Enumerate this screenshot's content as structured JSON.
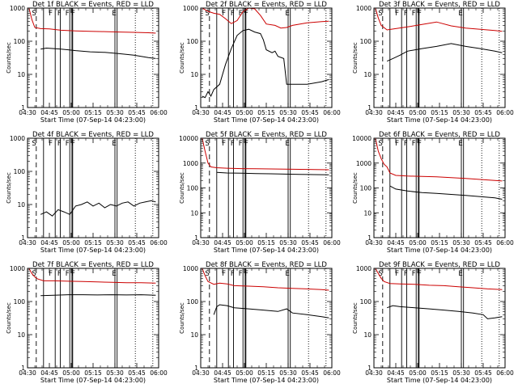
{
  "figure": {
    "background": "#ffffff",
    "event_color": "#000000",
    "lld_color": "#cc0000"
  },
  "shared": {
    "ylabel": "Counts/sec",
    "xlabel": "Start Time (07-Sep-14 04:23:00)",
    "x_tick_labels": [
      "04:30",
      "04:45",
      "05:00",
      "05:15",
      "05:30",
      "05:45",
      "06:00"
    ],
    "x_range_min": [
      7,
      97
    ],
    "x_tick_min": [
      7,
      22,
      37,
      52,
      67,
      82,
      97
    ],
    "marker_letters": [
      "S",
      "F",
      "F",
      "F",
      "F",
      "E"
    ],
    "marker_min": [
      10,
      21.5,
      27.5,
      33,
      37,
      65
    ],
    "vline_min": [
      18,
      26,
      29.5,
      36,
      37.5,
      38,
      67,
      68.5
    ],
    "dotted_min": [
      81,
      93
    ],
    "dashed_min": 13
  },
  "chart_data": [
    {
      "type": "line",
      "title": "Det 1f BLACK = Events, RED = LLD",
      "y_tick_labels": [
        "1",
        "10",
        "100",
        "1000"
      ],
      "ylim": [
        1,
        1000
      ],
      "series": [
        {
          "name": "LLD",
          "color": "#cc0000",
          "x": [
            8,
            10,
            12,
            16,
            22,
            30,
            40,
            50,
            60,
            70,
            80,
            90,
            95
          ],
          "y": [
            1000,
            450,
            260,
            240,
            235,
            215,
            205,
            200,
            195,
            190,
            185,
            180,
            175
          ]
        },
        {
          "name": "Events",
          "color": "#000000",
          "x": [
            16,
            20,
            25,
            30,
            35,
            40,
            50,
            60,
            70,
            80,
            90,
            95
          ],
          "y": [
            58,
            62,
            60,
            58,
            55,
            52,
            48,
            46,
            42,
            38,
            32,
            30
          ]
        }
      ]
    },
    {
      "type": "line",
      "title": "Det 2f BLACK = Events, RED = LLD",
      "y_tick_labels": [
        "1",
        "10",
        "100",
        "1000"
      ],
      "ylim": [
        1,
        1000
      ],
      "series": [
        {
          "name": "LLD",
          "color": "#cc0000",
          "x": [
            8,
            12,
            16,
            20,
            24,
            28,
            32,
            36,
            40,
            44,
            48,
            52,
            58,
            62,
            66,
            70,
            80,
            90,
            95
          ],
          "y": [
            1000,
            800,
            700,
            650,
            480,
            340,
            420,
            780,
            1000,
            950,
            600,
            330,
            300,
            250,
            260,
            300,
            360,
            390,
            400
          ]
        },
        {
          "name": "Events",
          "color": "#000000",
          "x": [
            8,
            10,
            12,
            14,
            16,
            20,
            24,
            28,
            32,
            36,
            40,
            44,
            48,
            50,
            52,
            56,
            58,
            60,
            64,
            66,
            70,
            80,
            90,
            95
          ],
          "y": [
            2.2,
            2.0,
            3.0,
            2.2,
            3.5,
            5,
            20,
            60,
            150,
            210,
            230,
            190,
            170,
            110,
            55,
            45,
            50,
            35,
            30,
            5,
            5,
            5,
            6,
            7
          ]
        }
      ]
    },
    {
      "type": "line",
      "title": "Det 3f BLACK = Events, RED = LLD",
      "y_tick_labels": [
        "1",
        "10",
        "100",
        "1000"
      ],
      "ylim": [
        1,
        1000
      ],
      "series": [
        {
          "name": "LLD",
          "color": "#cc0000",
          "x": [
            8,
            10,
            12,
            16,
            22,
            30,
            40,
            50,
            60,
            70,
            80,
            90,
            95
          ],
          "y": [
            1000,
            500,
            300,
            220,
            240,
            270,
            320,
            380,
            290,
            250,
            230,
            210,
            200
          ]
        },
        {
          "name": "Events",
          "color": "#000000",
          "x": [
            16,
            20,
            25,
            30,
            40,
            50,
            60,
            70,
            80,
            90,
            95
          ],
          "y": [
            25,
            30,
            38,
            50,
            60,
            70,
            85,
            70,
            60,
            50,
            45
          ]
        }
      ]
    },
    {
      "type": "line",
      "title": "Det 4f BLACK = Events, RED = LLD",
      "y_tick_labels": [
        "1",
        "10",
        "100",
        "1000"
      ],
      "ylim": [
        1,
        1000
      ],
      "series": [
        {
          "name": "Events",
          "color": "#000000",
          "x": [
            16,
            20,
            24,
            28,
            32,
            36,
            40,
            44,
            48,
            52,
            56,
            60,
            64,
            68,
            72,
            76,
            80,
            84,
            88,
            92,
            95
          ],
          "y": [
            5,
            6,
            4.5,
            7,
            6,
            5,
            9,
            10,
            12,
            9,
            11,
            8,
            10,
            9,
            11,
            12,
            9,
            11,
            12,
            13,
            12
          ]
        }
      ]
    },
    {
      "type": "line",
      "title": "Det 5f BLACK = Events, RED = LLD",
      "y_tick_labels": [
        "1",
        "10",
        "100",
        "1000",
        "10000"
      ],
      "ylim": [
        1,
        10000
      ],
      "series": [
        {
          "name": "LLD",
          "color": "#cc0000",
          "x": [
            8,
            10,
            12,
            14,
            18,
            25,
            35,
            45,
            55,
            65,
            75,
            85,
            95
          ],
          "y": [
            10000,
            3000,
            1000,
            700,
            650,
            620,
            600,
            590,
            580,
            570,
            560,
            550,
            540
          ]
        },
        {
          "name": "Events",
          "color": "#000000",
          "x": [
            18,
            25,
            35,
            45,
            55,
            65,
            75,
            85,
            95
          ],
          "y": [
            420,
            400,
            390,
            380,
            370,
            360,
            350,
            345,
            340
          ]
        }
      ]
    },
    {
      "type": "line",
      "title": "Det 6f BLACK = Events, RED = LLD",
      "y_tick_labels": [
        "1",
        "10",
        "100",
        "1000",
        "10000"
      ],
      "ylim": [
        1,
        10000
      ],
      "series": [
        {
          "name": "LLD",
          "color": "#cc0000",
          "x": [
            8,
            10,
            12,
            14,
            16,
            18,
            22,
            30,
            40,
            50,
            60,
            70,
            80,
            90,
            95
          ],
          "y": [
            10000,
            3000,
            1500,
            900,
            700,
            400,
            320,
            300,
            290,
            280,
            260,
            240,
            220,
            200,
            190
          ]
        },
        {
          "name": "Events",
          "color": "#000000",
          "x": [
            18,
            22,
            30,
            40,
            50,
            60,
            70,
            80,
            90,
            95
          ],
          "y": [
            120,
            90,
            75,
            65,
            60,
            55,
            50,
            45,
            40,
            35
          ]
        }
      ]
    },
    {
      "type": "line",
      "title": "Det 7f BLACK = Events, RED = LLD",
      "y_tick_labels": [
        "1",
        "10",
        "100",
        "1000"
      ],
      "ylim": [
        1,
        1000
      ],
      "series": [
        {
          "name": "LLD",
          "color": "#cc0000",
          "x": [
            8,
            10,
            12,
            14,
            18,
            25,
            35,
            45,
            55,
            65,
            75,
            85,
            95
          ],
          "y": [
            1000,
            700,
            550,
            480,
            420,
            420,
            410,
            400,
            390,
            380,
            370,
            370,
            360
          ]
        },
        {
          "name": "Events",
          "color": "#000000",
          "x": [
            16,
            25,
            35,
            45,
            55,
            65,
            75,
            85,
            95
          ],
          "y": [
            150,
            155,
            160,
            160,
            158,
            160,
            158,
            160,
            155
          ]
        }
      ]
    },
    {
      "type": "line",
      "title": "Det 8f BLACK = Events, RED = LLD",
      "y_tick_labels": [
        "1",
        "10",
        "100",
        "1000"
      ],
      "ylim": [
        1,
        1000
      ],
      "series": [
        {
          "name": "LLD",
          "color": "#cc0000",
          "x": [
            8,
            10,
            12,
            16,
            20,
            25,
            30,
            40,
            50,
            60,
            70,
            80,
            90,
            95
          ],
          "y": [
            1000,
            600,
            400,
            330,
            360,
            340,
            300,
            290,
            280,
            260,
            250,
            240,
            230,
            220
          ]
        },
        {
          "name": "Events",
          "color": "#000000",
          "x": [
            16,
            18,
            20,
            25,
            30,
            40,
            50,
            60,
            66,
            70,
            80,
            90,
            95
          ],
          "y": [
            40,
            70,
            80,
            75,
            65,
            60,
            55,
            50,
            60,
            45,
            40,
            35,
            32
          ]
        }
      ]
    },
    {
      "type": "line",
      "title": "Det 9f BLACK = Events, RED = LLD",
      "y_tick_labels": [
        "1",
        "10",
        "100",
        "1000"
      ],
      "ylim": [
        1,
        1000
      ],
      "series": [
        {
          "name": "LLD",
          "color": "#cc0000",
          "x": [
            8,
            10,
            12,
            14,
            18,
            25,
            35,
            45,
            55,
            65,
            75,
            85,
            95
          ],
          "y": [
            1000,
            700,
            500,
            400,
            350,
            340,
            330,
            310,
            300,
            280,
            260,
            240,
            230
          ]
        },
        {
          "name": "Events",
          "color": "#000000",
          "x": [
            16,
            20,
            25,
            35,
            45,
            55,
            65,
            75,
            82,
            85,
            90,
            95
          ],
          "y": [
            65,
            75,
            70,
            65,
            60,
            55,
            50,
            45,
            40,
            30,
            32,
            35
          ]
        }
      ]
    }
  ]
}
